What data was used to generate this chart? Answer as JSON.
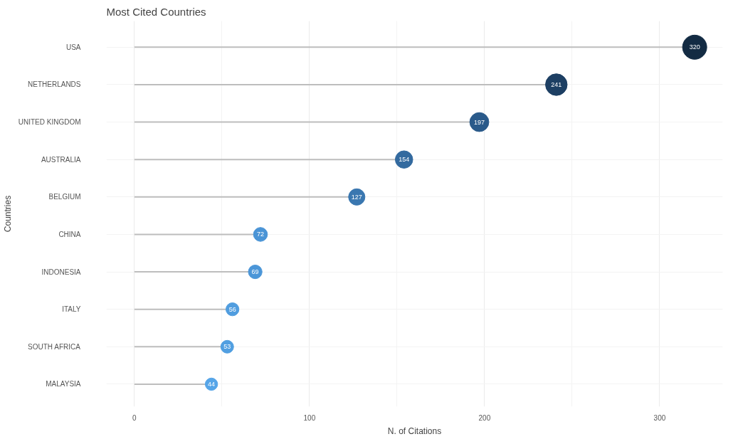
{
  "chart_data": {
    "type": "lollipop",
    "title": "Most Cited Countries",
    "xlabel": "N. of Citations",
    "ylabel": "Countries",
    "orientation": "horizontal",
    "categories": [
      "USA",
      "NETHERLANDS",
      "UNITED KINGDOM",
      "AUSTRALIA",
      "BELGIUM",
      "CHINA",
      "INDONESIA",
      "ITALY",
      "SOUTH AFRICA",
      "MALAYSIA"
    ],
    "values": [
      320,
      241,
      197,
      154,
      127,
      72,
      69,
      56,
      53,
      44
    ],
    "colors": [
      "#132b43",
      "#1d3f63",
      "#2a5a8a",
      "#336a9f",
      "#3a77b0",
      "#4a94d6",
      "#4b96d8",
      "#509ddf",
      "#519fe1",
      "#56a5e8"
    ],
    "xlim": [
      -16,
      336
    ],
    "xticks": [
      0,
      {
        "value": 50,
        "label": null
      },
      100,
      {
        "value": 150,
        "label": null
      },
      200,
      {
        "value": 250,
        "label": null
      },
      300
    ],
    "sizes": [
      1,
      0.8,
      0.62,
      0.52,
      0.46,
      0.33,
      0.32,
      0.29,
      0.28,
      0.26
    ],
    "data_labels": true,
    "grid": true
  }
}
